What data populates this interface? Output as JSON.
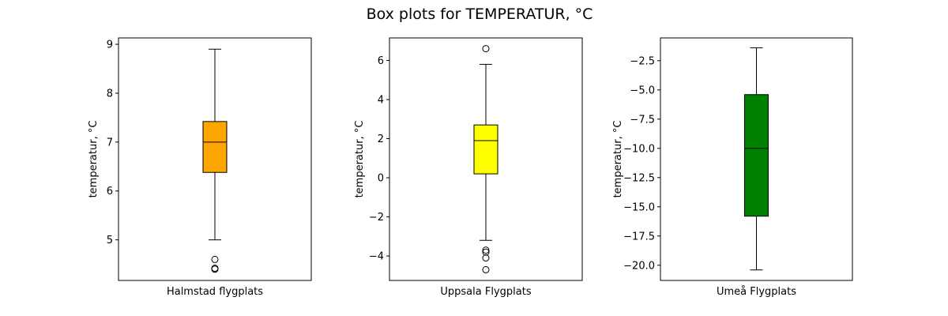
{
  "figure_title": "Box plots for TEMPERATUR, °C",
  "chart_data": [
    {
      "type": "box",
      "category": "Halmstad flygplats",
      "ylabel": "temperatur, °C",
      "color": "#ffa500",
      "ylim": [
        4.17,
        9.13
      ],
      "yticks": [
        5,
        6,
        7,
        8,
        9
      ],
      "yticklabels": [
        "5",
        "6",
        "7",
        "8",
        "9"
      ],
      "box": {
        "whisker_low": 5.0,
        "q1": 6.38,
        "median": 7.0,
        "q3": 7.42,
        "whisker_high": 8.9
      },
      "outliers": [
        4.4,
        4.42,
        4.6
      ]
    },
    {
      "type": "box",
      "category": "Uppsala Flygplats",
      "ylabel": "temperatur, °C",
      "color": "#ffff00",
      "ylim": [
        -5.25,
        7.15
      ],
      "yticks": [
        -4,
        -2,
        0,
        2,
        4,
        6
      ],
      "yticklabels": [
        "−4",
        "−2",
        "0",
        "2",
        "4",
        "6"
      ],
      "box": {
        "whisker_low": -3.2,
        "q1": 0.2,
        "median": 1.9,
        "q3": 2.7,
        "whisker_high": 5.8
      },
      "outliers": [
        -3.7,
        -3.8,
        -4.1,
        -4.7,
        6.6
      ]
    },
    {
      "type": "box",
      "category": "Umeå Flygplats",
      "ylabel": "temperatur, °C",
      "color": "#008000",
      "ylim": [
        -21.3,
        -0.55
      ],
      "yticks": [
        -20,
        -17.5,
        -15,
        -12.5,
        -10,
        -7.5,
        -5,
        -2.5
      ],
      "yticklabels": [
        "−20.0",
        "−17.5",
        "−15.0",
        "−12.5",
        "−10.0",
        "−7.5",
        "−5.0",
        "−2.5"
      ],
      "box": {
        "whisker_low": -20.4,
        "q1": -15.8,
        "median": -10.0,
        "q3": -5.4,
        "whisker_high": -1.4
      },
      "outliers": []
    }
  ]
}
